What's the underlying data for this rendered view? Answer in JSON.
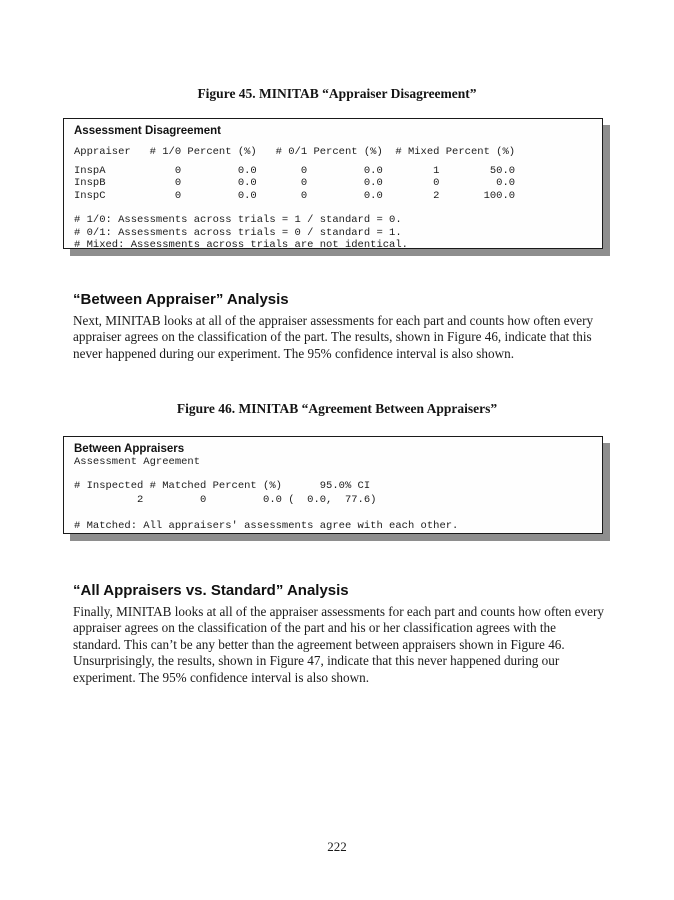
{
  "figure45": {
    "caption": "Figure 45. MINITAB “Appraiser Disagreement”",
    "box_title": "Assessment Disagreement",
    "table_header": "Appraiser   # 1/0 Percent (%)   # 0/1 Percent (%)  # Mixed Percent (%)",
    "table_rows": "InspA           0         0.0       0         0.0        1        50.0\nInspB           0         0.0       0         0.0        0         0.0\nInspC           0         0.0       0         0.0        2       100.0",
    "footnotes": "# 1/0: Assessments across trials = 1 / standard = 0.\n# 0/1: Assessments across trials = 0 / standard = 1.\n# Mixed: Assessments across trials are not identical."
  },
  "between_appraiser_section": {
    "heading": "“Between Appraiser” Analysis",
    "paragraph": "Next, MINITAB looks at all of the appraiser assessments for each part and counts how often every appraiser agrees on the classification of the part. The results, shown in Figure 46, indicate that this never happened during our experiment. The 95% confidence interval is also shown."
  },
  "figure46": {
    "caption": "Figure 46. MINITAB “Agreement Between Appraisers”",
    "box_title": "Between Appraisers",
    "subtitle": "Assessment Agreement",
    "table_header": "# Inspected # Matched Percent (%)      95.0% CI",
    "table_row": "          2         0         0.0 (  0.0,  77.6)",
    "footnote": "# Matched: All appraisers' assessments agree with each other."
  },
  "all_vs_standard_section": {
    "heading": "“All Appraisers vs. Standard” Analysis",
    "paragraph": "Finally, MINITAB looks at all of the appraiser assessments for each part and counts how often every appraiser agrees on the classification of the part and his or her classification agrees with the standard. This can’t be any better than the agreement between appraisers shown in Figure 46. Unsurprisingly, the results, shown in Figure 47, indicate that this never happened during our experiment. The 95% confidence interval is also shown."
  },
  "page_footer": {
    "page_number": "222"
  }
}
